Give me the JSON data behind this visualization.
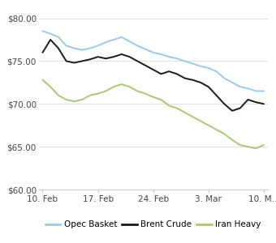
{
  "xlabels": [
    "10. Feb",
    "17. Feb",
    "24. Feb",
    "3. Mar",
    "10. M..."
  ],
  "xtick_positions": [
    0,
    7,
    14,
    21,
    28
  ],
  "ylim": [
    60.0,
    81.0
  ],
  "yticks": [
    60.0,
    65.0,
    70.0,
    75.0,
    80.0
  ],
  "ytick_labels": [
    "$60.00",
    "$65.00",
    "$70.00",
    "$75.00",
    "$80.00"
  ],
  "opec_basket": {
    "label": "Opec Basket",
    "color": "#9ec8e8",
    "x": [
      0,
      1,
      2,
      3,
      4,
      5,
      6,
      7,
      8,
      9,
      10,
      11,
      12,
      13,
      14,
      15,
      16,
      17,
      18,
      19,
      20,
      21,
      22,
      23,
      24,
      25,
      26,
      27,
      28
    ],
    "y": [
      78.5,
      78.2,
      77.8,
      76.8,
      76.5,
      76.3,
      76.5,
      76.8,
      77.2,
      77.5,
      77.8,
      77.3,
      76.8,
      76.4,
      76.0,
      75.8,
      75.5,
      75.3,
      75.0,
      74.7,
      74.4,
      74.2,
      73.8,
      73.0,
      72.5,
      72.0,
      71.8,
      71.5,
      71.5
    ]
  },
  "brent_crude": {
    "label": "Brent Crude",
    "color": "#1a1a1a",
    "x": [
      0,
      1,
      2,
      3,
      4,
      5,
      6,
      7,
      8,
      9,
      10,
      11,
      12,
      13,
      14,
      15,
      16,
      17,
      18,
      19,
      20,
      21,
      22,
      23,
      24,
      25,
      26,
      27,
      28
    ],
    "y": [
      76.0,
      77.5,
      76.5,
      75.0,
      74.8,
      75.0,
      75.2,
      75.5,
      75.3,
      75.5,
      75.8,
      75.5,
      75.0,
      74.5,
      74.0,
      73.5,
      73.8,
      73.5,
      73.0,
      72.8,
      72.5,
      72.0,
      71.0,
      70.0,
      69.2,
      69.5,
      70.5,
      70.2,
      70.0
    ]
  },
  "iran_heavy": {
    "label": "Iran Heavy",
    "color": "#a8c878",
    "x": [
      0,
      1,
      2,
      3,
      4,
      5,
      6,
      7,
      8,
      9,
      10,
      11,
      12,
      13,
      14,
      15,
      16,
      17,
      18,
      19,
      20,
      21,
      22,
      23,
      24,
      25,
      26,
      27,
      28
    ],
    "y": [
      72.8,
      72.0,
      71.0,
      70.5,
      70.3,
      70.5,
      71.0,
      71.2,
      71.5,
      72.0,
      72.3,
      72.0,
      71.5,
      71.2,
      70.8,
      70.5,
      69.8,
      69.5,
      69.0,
      68.5,
      68.0,
      67.5,
      67.0,
      66.5,
      65.8,
      65.2,
      65.0,
      64.8,
      65.2
    ]
  },
  "bg_color": "#ffffff",
  "plot_bg_color": "#ffffff",
  "grid_color": "#e0e0e0",
  "legend_fontsize": 7.5,
  "tick_fontsize": 7.5,
  "line_width": 1.4
}
